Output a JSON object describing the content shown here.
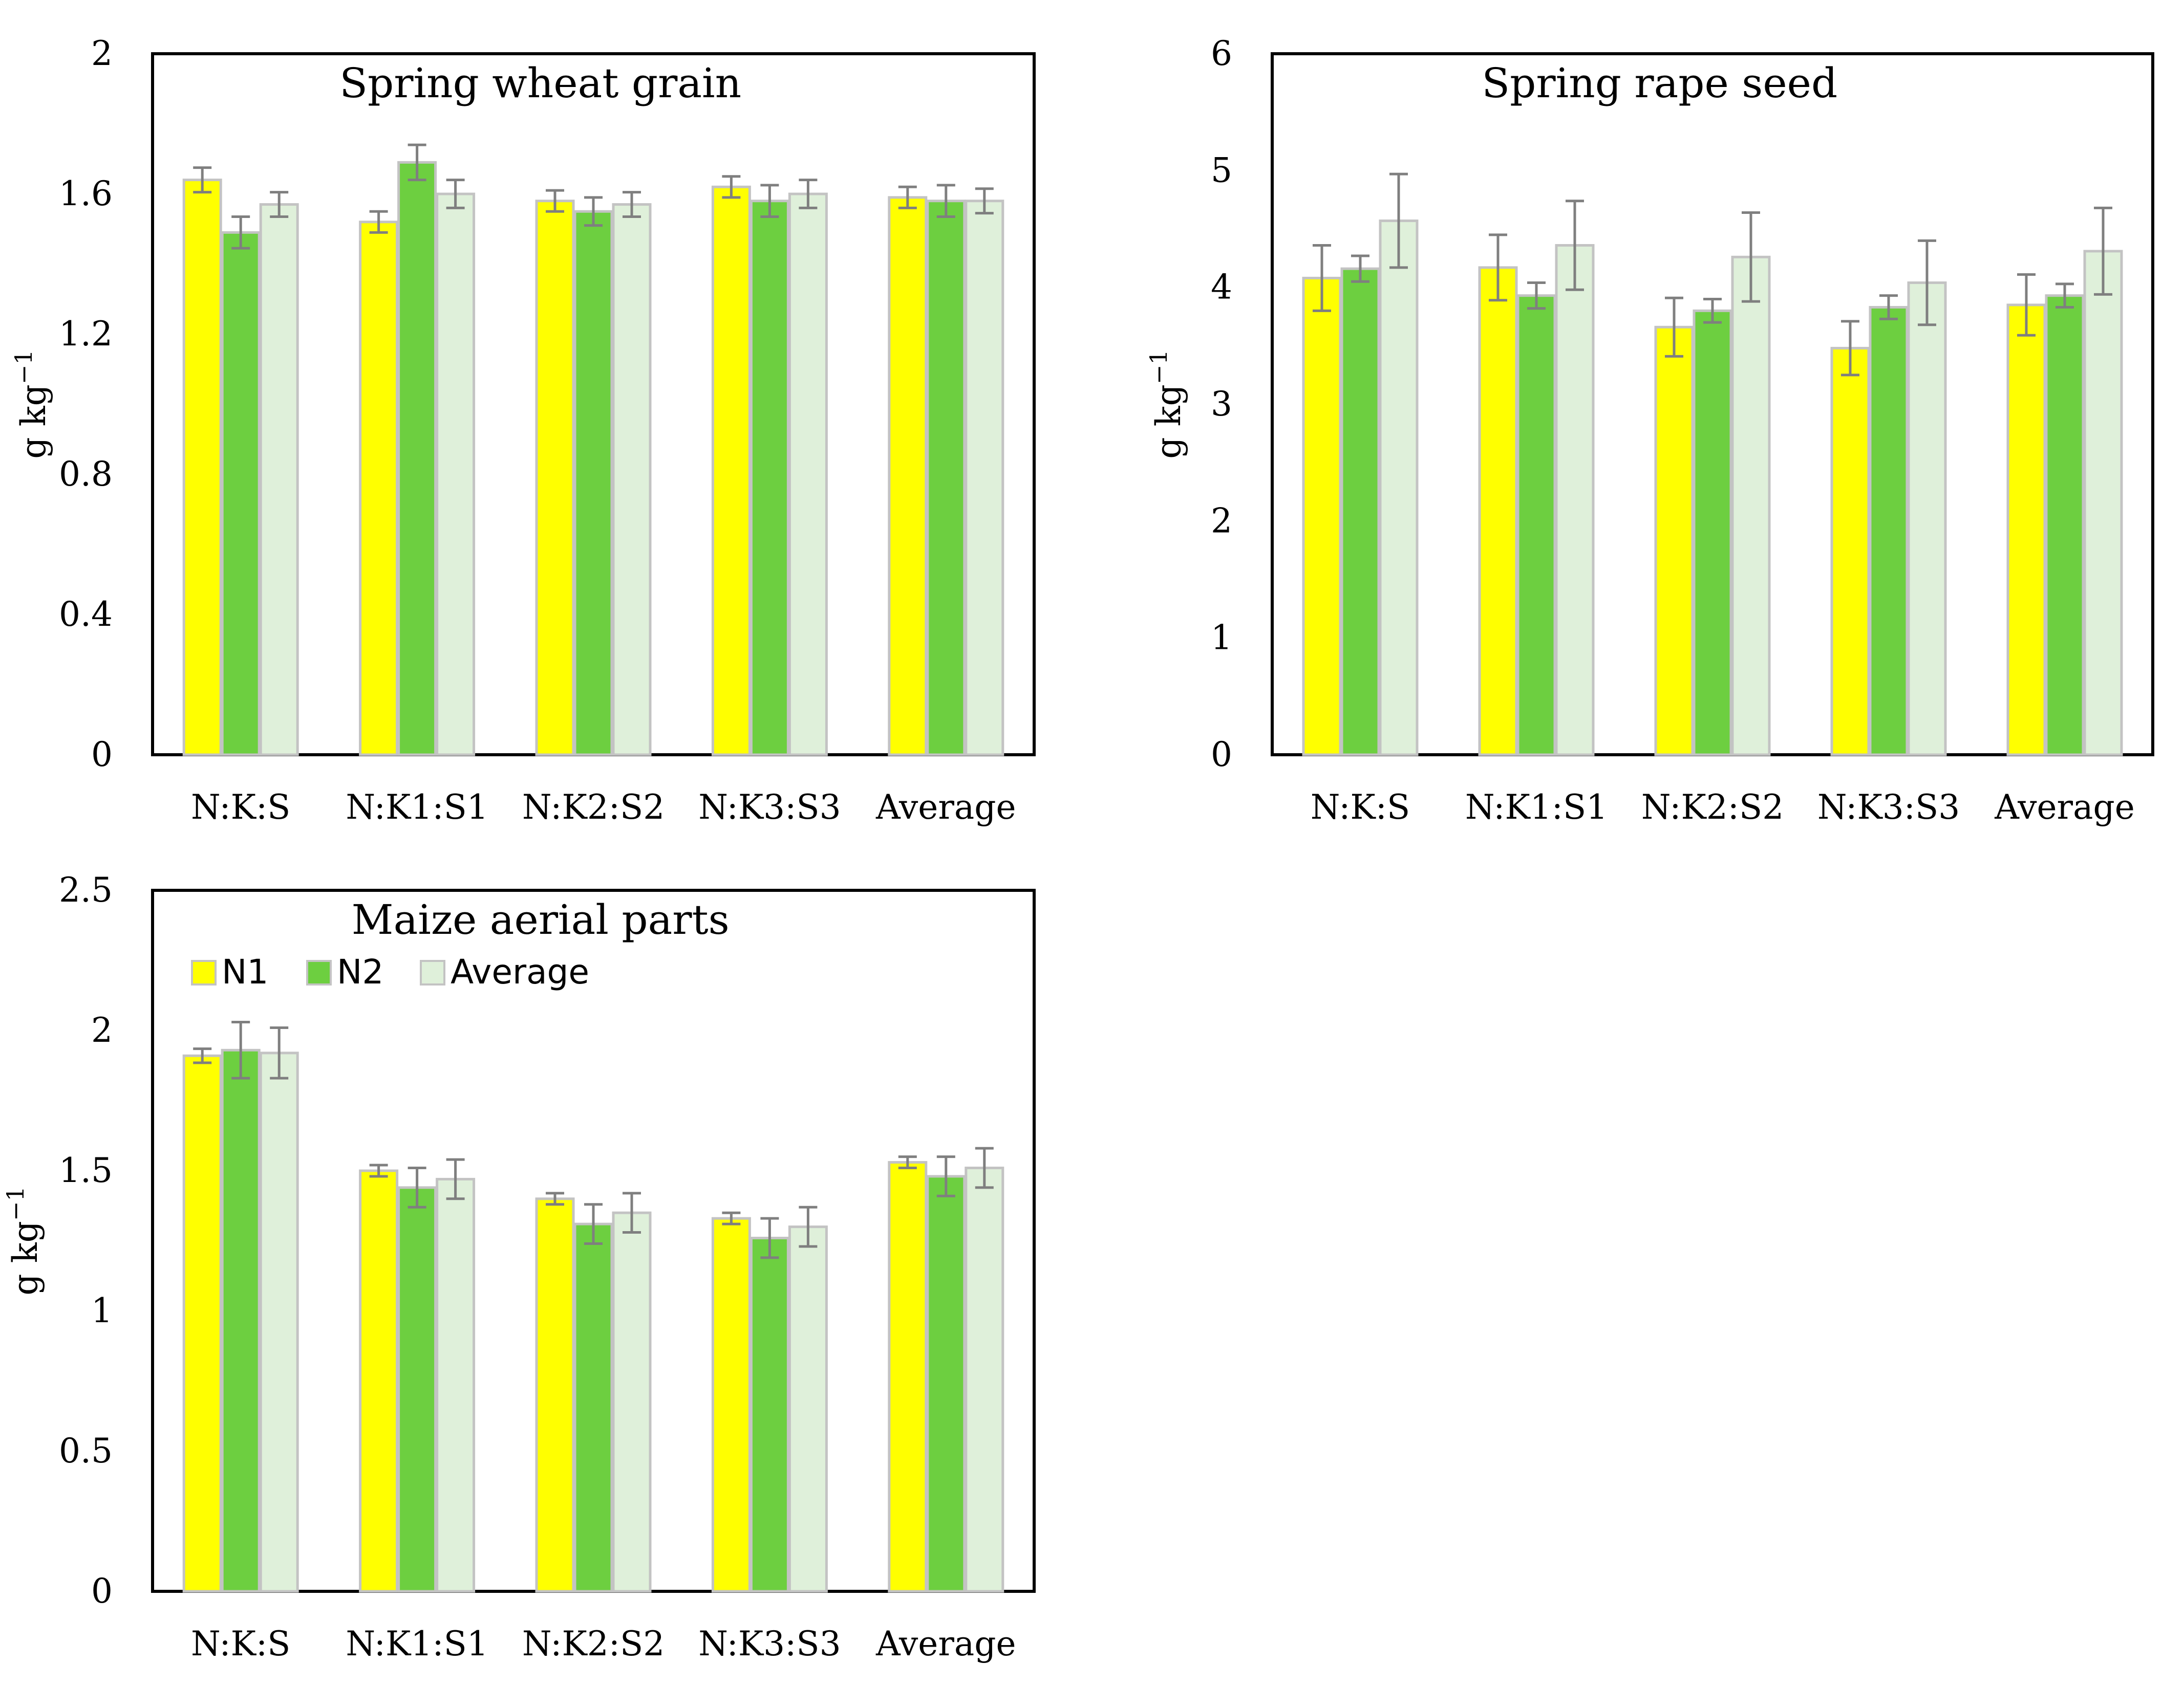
{
  "legend": {
    "series": [
      "N1",
      "N2",
      "Average"
    ]
  },
  "colors": {
    "N1": "#ffff00",
    "N2": "#6dcf40",
    "Average": "#dff0da",
    "bar_border": "#c3c3c3",
    "error_bar": "#7f7f7f",
    "frame": "#000000"
  },
  "chart_data": [
    {
      "type": "bar",
      "title": "Spring wheat grain",
      "xlabel": "",
      "ylabel": "g kg−1",
      "ylabel_base": "g kg",
      "ylabel_exp": "−1",
      "ylim": [
        0,
        2
      ],
      "yticks": [
        0,
        0.4,
        0.8,
        1.2,
        1.6,
        2
      ],
      "ytick_labels": [
        "0",
        "0.4",
        "0.8",
        "1.2",
        "1.6",
        "2"
      ],
      "categories": [
        "N:K:S",
        "N:K1:S1",
        "N:K2:S2",
        "N:K3:S3",
        "Average"
      ],
      "series": [
        {
          "name": "N1",
          "values": [
            1.64,
            1.52,
            1.58,
            1.62,
            1.59
          ],
          "errors": [
            0.035,
            0.03,
            0.03,
            0.03,
            0.03
          ]
        },
        {
          "name": "N2",
          "values": [
            1.49,
            1.69,
            1.55,
            1.58,
            1.58
          ],
          "errors": [
            0.045,
            0.05,
            0.04,
            0.045,
            0.045
          ]
        },
        {
          "name": "Average",
          "values": [
            1.57,
            1.6,
            1.57,
            1.6,
            1.58
          ],
          "errors": [
            0.035,
            0.04,
            0.035,
            0.04,
            0.035
          ]
        }
      ]
    },
    {
      "type": "bar",
      "title": "Spring rape seed",
      "xlabel": "",
      "ylabel": "g kg−1",
      "ylabel_base": "g kg",
      "ylabel_exp": "−1",
      "ylim": [
        0,
        6
      ],
      "yticks": [
        0,
        1,
        2,
        3,
        4,
        5,
        6
      ],
      "ytick_labels": [
        "0",
        "1",
        "2",
        "3",
        "4",
        "5",
        "6"
      ],
      "categories": [
        "N:K:S",
        "N:K1:S1",
        "N:K2:S2",
        "N:K3:S3",
        "Average"
      ],
      "series": [
        {
          "name": "N1",
          "values": [
            4.08,
            4.17,
            3.66,
            3.48,
            3.85
          ],
          "errors": [
            0.28,
            0.28,
            0.25,
            0.23,
            0.26
          ]
        },
        {
          "name": "N2",
          "values": [
            4.16,
            3.93,
            3.8,
            3.83,
            3.93
          ],
          "errors": [
            0.11,
            0.11,
            0.1,
            0.1,
            0.1
          ]
        },
        {
          "name": "Average",
          "values": [
            4.57,
            4.36,
            4.26,
            4.04,
            4.31
          ],
          "errors": [
            0.4,
            0.38,
            0.38,
            0.36,
            0.37
          ]
        }
      ]
    },
    {
      "type": "bar",
      "title": "Maize aerial parts",
      "xlabel": "",
      "ylabel": "g kg−1",
      "ylabel_base": "g kg",
      "ylabel_exp": "−1",
      "ylim": [
        0,
        2.5
      ],
      "yticks": [
        0,
        0.5,
        1,
        1.5,
        2,
        2.5
      ],
      "ytick_labels": [
        "0",
        "0.5",
        "1",
        "1.5",
        "2",
        "2.5"
      ],
      "categories": [
        "N:K:S",
        "N:K1:S1",
        "N:K2:S2",
        "N:K3:S3",
        "Average"
      ],
      "legend_position": "top-left",
      "series": [
        {
          "name": "N1",
          "values": [
            1.91,
            1.5,
            1.4,
            1.33,
            1.53
          ],
          "errors": [
            0.025,
            0.02,
            0.02,
            0.02,
            0.02
          ]
        },
        {
          "name": "N2",
          "values": [
            1.93,
            1.44,
            1.31,
            1.26,
            1.48
          ],
          "errors": [
            0.1,
            0.07,
            0.07,
            0.07,
            0.07
          ]
        },
        {
          "name": "Average",
          "values": [
            1.92,
            1.47,
            1.35,
            1.3,
            1.51
          ],
          "errors": [
            0.09,
            0.07,
            0.07,
            0.07,
            0.07
          ]
        }
      ]
    }
  ]
}
